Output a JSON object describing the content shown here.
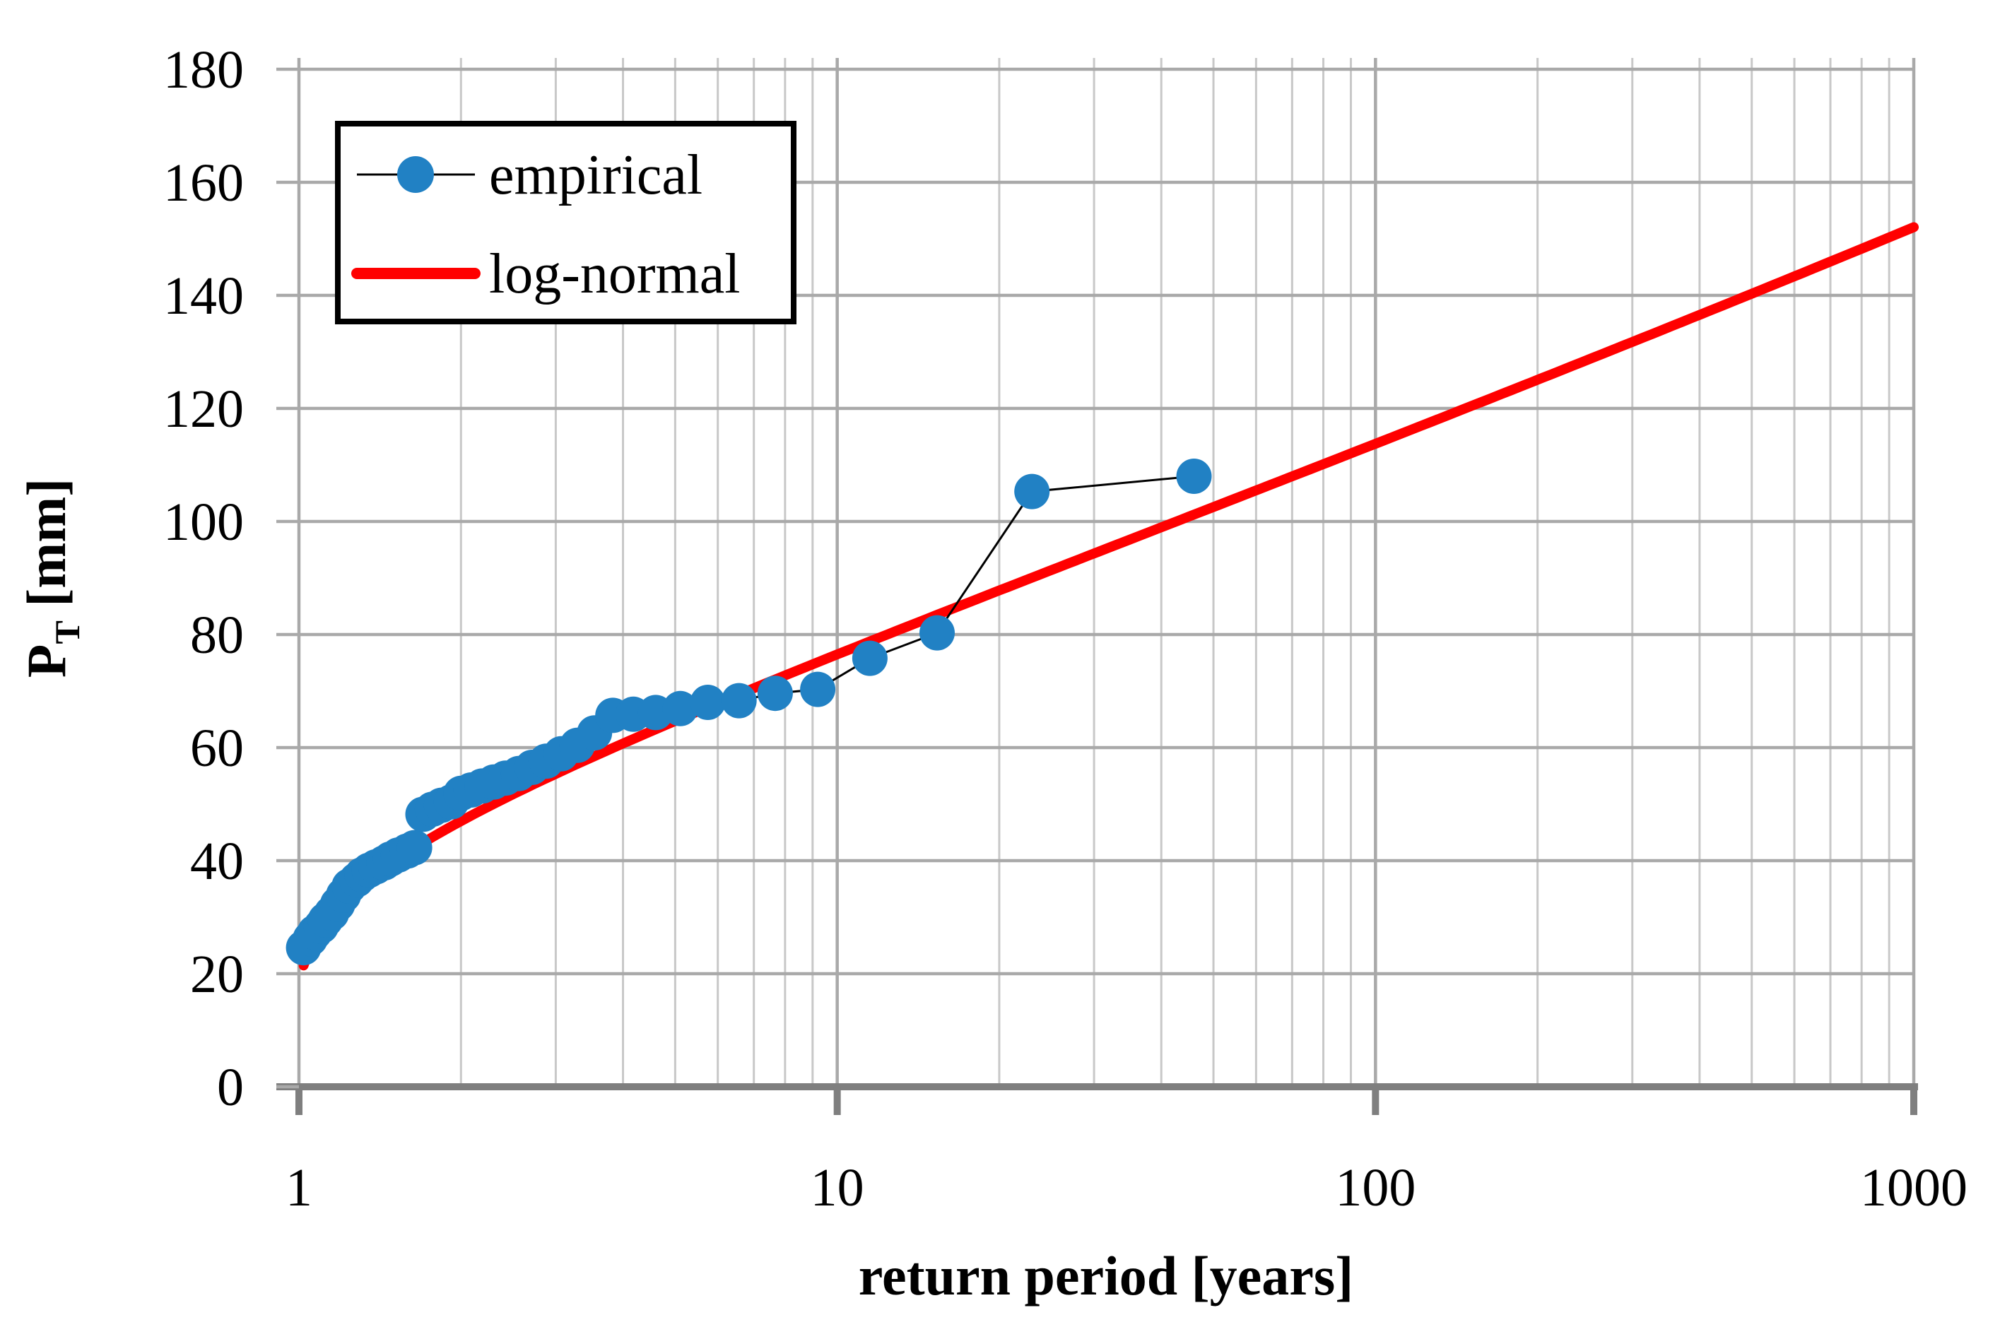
{
  "chart_data": {
    "type": "scatter",
    "title": "",
    "xlabel": "return period [years]",
    "ylabel_main": "P",
    "ylabel_sub": "T",
    "ylabel_unit": " [mm]",
    "x_axis": {
      "scale": "log",
      "min": 1,
      "max": 1000,
      "ticks": [
        1,
        10,
        100,
        1000
      ],
      "minor_gridlines_per_decade": [
        2,
        3,
        4,
        5,
        6,
        7,
        8,
        9
      ]
    },
    "y_axis": {
      "min": 0,
      "max": 180,
      "tick_step": 20,
      "ticks": [
        0,
        20,
        40,
        60,
        80,
        100,
        120,
        140,
        160,
        180
      ]
    },
    "grid": {
      "major": true,
      "minor_vertical": true
    },
    "legend": {
      "position": "upper-left",
      "entries": [
        "empirical",
        "log-normal"
      ]
    },
    "series": [
      {
        "name": "empirical",
        "type": "scatter-line",
        "marker_color": "#2181c4",
        "line_color": "#000000",
        "points": [
          [
            46.0,
            108.0
          ],
          [
            23.0,
            105.3
          ],
          [
            15.33,
            80.3
          ],
          [
            11.5,
            75.8
          ],
          [
            9.2,
            70.3
          ],
          [
            7.67,
            69.6
          ],
          [
            6.57,
            68.3
          ],
          [
            5.75,
            68.0
          ],
          [
            5.11,
            66.9
          ],
          [
            4.6,
            66.2
          ],
          [
            4.18,
            65.9
          ],
          [
            3.83,
            65.7
          ],
          [
            3.54,
            62.6
          ],
          [
            3.29,
            60.4
          ],
          [
            3.07,
            58.9
          ],
          [
            2.88,
            57.6
          ],
          [
            2.71,
            56.5
          ],
          [
            2.56,
            55.4
          ],
          [
            2.42,
            54.6
          ],
          [
            2.3,
            53.9
          ],
          [
            2.19,
            53.2
          ],
          [
            2.09,
            52.5
          ],
          [
            2.0,
            51.9
          ],
          [
            1.92,
            50.4
          ],
          [
            1.84,
            49.8
          ],
          [
            1.77,
            49.1
          ],
          [
            1.7,
            48.2
          ],
          [
            1.64,
            42.3
          ],
          [
            1.59,
            41.7
          ],
          [
            1.53,
            41.0
          ],
          [
            1.48,
            40.3
          ],
          [
            1.44,
            39.6
          ],
          [
            1.39,
            38.9
          ],
          [
            1.35,
            38.3
          ],
          [
            1.31,
            37.5
          ],
          [
            1.28,
            36.6
          ],
          [
            1.24,
            35.5
          ],
          [
            1.21,
            33.9
          ],
          [
            1.18,
            32.3
          ],
          [
            1.15,
            30.7
          ],
          [
            1.12,
            29.5
          ],
          [
            1.1,
            28.4
          ],
          [
            1.07,
            27.3
          ],
          [
            1.05,
            26.2
          ],
          [
            1.02,
            24.6
          ]
        ]
      },
      {
        "name": "log-normal",
        "type": "fitted-curve",
        "color": "#ff0000",
        "distribution": "log-normal",
        "mu_ln": 3.85,
        "sigma_ln": 0.38,
        "T_range": [
          1.02,
          1000
        ],
        "reference_points": [
          [
            2,
            47.0
          ],
          [
            5,
            65.0
          ],
          [
            10,
            76.5
          ],
          [
            20,
            87.5
          ],
          [
            50,
            101.5
          ],
          [
            100,
            114.0
          ],
          [
            200,
            125.2
          ],
          [
            500,
            140.0
          ],
          [
            1000,
            152.3
          ]
        ]
      }
    ]
  },
  "style": {
    "plot_bg": "#ffffff",
    "minor_grid_color": "#c8c8c8",
    "major_grid_color": "#a9a9a9",
    "axis_color": "#7f7f7f",
    "text_color": "#000000",
    "legend_border_color": "#000000"
  }
}
